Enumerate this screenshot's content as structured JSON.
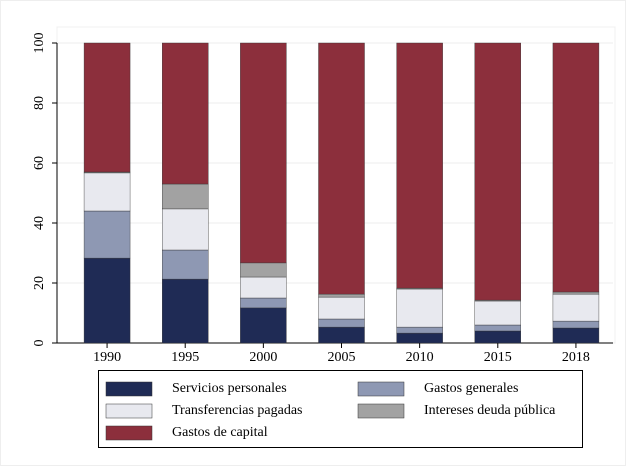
{
  "chart_data": {
    "type": "stacked_bar",
    "categories": [
      "1990",
      "1995",
      "2000",
      "2005",
      "2010",
      "2015",
      "2018"
    ],
    "series": [
      {
        "name": "Servicios personales",
        "color": "#1f2b55",
        "values": [
          28.3,
          21.3,
          11.7,
          5.3,
          3.3,
          4,
          5
        ]
      },
      {
        "name": "Gastos generales",
        "color": "#8e98b3",
        "values": [
          15.7,
          9.7,
          3.3,
          2.7,
          2,
          2,
          2.3
        ]
      },
      {
        "name": "Transferencias pagadas",
        "color": "#e8e9ef",
        "values": [
          12.7,
          13.7,
          7,
          7.3,
          12.7,
          8,
          9
        ]
      },
      {
        "name": "Intereses deuda pública",
        "color": "#a2a2a2",
        "values": [
          0.3,
          8.3,
          4.7,
          1,
          0.3,
          0.3,
          0.7
        ]
      },
      {
        "name": "Gastos de capital",
        "color": "#8c2f3c",
        "values": [
          43,
          47,
          73.3,
          83.7,
          81.7,
          85.7,
          83
        ]
      }
    ],
    "ylim": [
      0,
      100
    ],
    "yticks": [
      0,
      20,
      40,
      60,
      80,
      100
    ],
    "grid": true
  }
}
